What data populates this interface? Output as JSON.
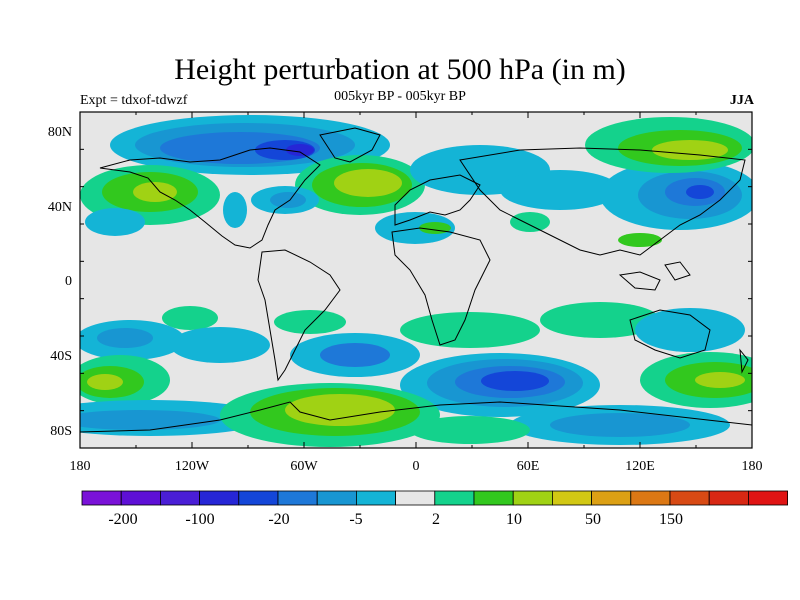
{
  "title": "Height perturbation at 500 hPa (in m)",
  "subtitle_left": "Expt = tdxof-tdwzf",
  "subtitle_center": "005kyr BP - 005kyr BP",
  "subtitle_right": "JJA",
  "map": {
    "x_ticks": [
      "180",
      "120W",
      "60W",
      "0",
      "60E",
      "120E",
      "180"
    ],
    "y_ticks": [
      "80N",
      "40N",
      "0",
      "40S",
      "80S"
    ],
    "land_background_color": "#e6e6e6",
    "coastline_color": "#000000"
  },
  "colorbar": {
    "labels": [
      "-200",
      "-100",
      "-20",
      "-5",
      "2",
      "10",
      "50",
      "150"
    ],
    "colors": [
      "#7a12d8",
      "#5e10d6",
      "#4a1ed6",
      "#2626d6",
      "#1446d8",
      "#1e78d8",
      "#1896d2",
      "#14b4d6",
      "#e6e6e6",
      "#14d28c",
      "#32c81e",
      "#a0d214",
      "#d2c814",
      "#dca014",
      "#dc7814",
      "#d84a14",
      "#d82814",
      "#e01414"
    ]
  }
}
